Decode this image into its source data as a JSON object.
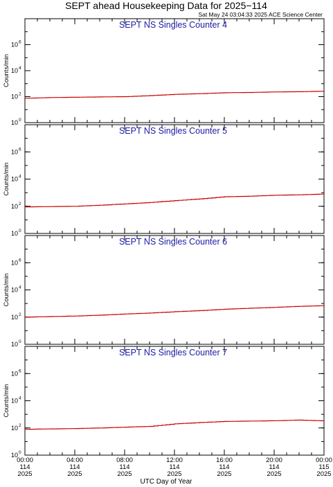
{
  "header": {
    "title": "SEPT ahead Housekeeping Data for 2025−114",
    "timestamp": "Sat May 24 03:04:33 2025 ACE Science Center"
  },
  "chart_data": {
    "type": "line",
    "ylabel": "Counts/min",
    "xlabel": "UTC Day of Year",
    "ylim": [
      1,
      100000000
    ],
    "yscale": "log",
    "y_ticks": [
      {
        "base": "10",
        "exp": "0"
      },
      {
        "base": "10",
        "exp": "2"
      },
      {
        "base": "10",
        "exp": "4"
      },
      {
        "base": "10",
        "exp": "6"
      }
    ],
    "x_ticks": [
      {
        "time": "00:00",
        "doy": "114",
        "year": "2025"
      },
      {
        "time": "04:00",
        "doy": "114",
        "year": "2025"
      },
      {
        "time": "08:00",
        "doy": "114",
        "year": "2025"
      },
      {
        "time": "12:00",
        "doy": "114",
        "year": "2025"
      },
      {
        "time": "16:00",
        "doy": "114",
        "year": "2025"
      },
      {
        "time": "20:00",
        "doy": "114",
        "year": "2025"
      },
      {
        "time": "00:00",
        "doy": "115",
        "year": "2025"
      }
    ],
    "xlim_hours": [
      0,
      24
    ],
    "line_color": "#cc0000",
    "title_color": "#1a1aa6",
    "panels": [
      {
        "title": "SEPT NS Singles Counter 4",
        "x": [
          0,
          2,
          4,
          6,
          8,
          10,
          12,
          14,
          16,
          18,
          20,
          22,
          24
        ],
        "values": [
          75,
          85,
          90,
          95,
          100,
          120,
          150,
          170,
          200,
          210,
          230,
          240,
          260
        ]
      },
      {
        "title": "SEPT NS Singles Counter 5",
        "x": [
          0,
          2,
          4,
          6,
          8,
          10,
          12,
          14,
          16,
          18,
          20,
          22,
          24
        ],
        "values": [
          90,
          95,
          100,
          120,
          150,
          190,
          260,
          350,
          500,
          550,
          650,
          700,
          800
        ]
      },
      {
        "title": "SEPT NS Singles Counter 6",
        "x": [
          0,
          2,
          4,
          6,
          8,
          10,
          12,
          14,
          16,
          18,
          20,
          22,
          24
        ],
        "values": [
          100,
          110,
          120,
          140,
          170,
          200,
          250,
          300,
          380,
          450,
          520,
          620,
          700
        ]
      },
      {
        "title": "SEPT NS Singles Counter 7",
        "x": [
          0,
          2,
          4,
          6,
          8,
          10,
          12,
          14,
          16,
          18,
          20,
          22,
          24
        ],
        "values": [
          80,
          85,
          90,
          100,
          115,
          130,
          200,
          250,
          300,
          320,
          340,
          380,
          330
        ]
      }
    ]
  }
}
